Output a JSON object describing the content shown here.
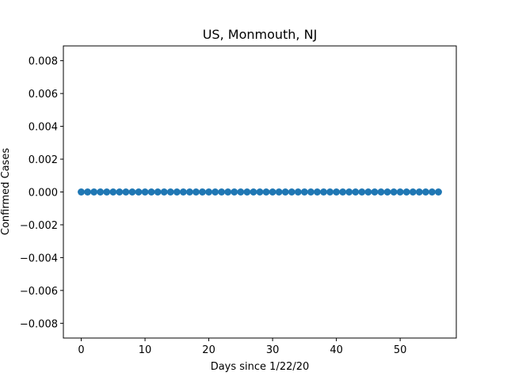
{
  "chart_data": {
    "type": "scatter",
    "title": "US, Monmouth, NJ",
    "xlabel": "Days since 1/22/20",
    "ylabel": "Confirmed Cases",
    "x": [
      0,
      1,
      2,
      3,
      4,
      5,
      6,
      7,
      8,
      9,
      10,
      11,
      12,
      13,
      14,
      15,
      16,
      17,
      18,
      19,
      20,
      21,
      22,
      23,
      24,
      25,
      26,
      27,
      28,
      29,
      30,
      31,
      32,
      33,
      34,
      35,
      36,
      37,
      38,
      39,
      40,
      41,
      42,
      43,
      44,
      45,
      46,
      47,
      48,
      49,
      50,
      51,
      52,
      53,
      54,
      55,
      56
    ],
    "y": [
      0,
      0,
      0,
      0,
      0,
      0,
      0,
      0,
      0,
      0,
      0,
      0,
      0,
      0,
      0,
      0,
      0,
      0,
      0,
      0,
      0,
      0,
      0,
      0,
      0,
      0,
      0,
      0,
      0,
      0,
      0,
      0,
      0,
      0,
      0,
      0,
      0,
      0,
      0,
      0,
      0,
      0,
      0,
      0,
      0,
      0,
      0,
      0,
      0,
      0,
      0,
      0,
      0,
      0,
      0,
      0,
      0
    ],
    "xlim": [
      -2.8,
      58.8
    ],
    "ylim": [
      -0.0089,
      0.0089
    ],
    "xticks": [
      0,
      10,
      20,
      30,
      40,
      50
    ],
    "xtick_labels": [
      "0",
      "10",
      "20",
      "30",
      "40",
      "50"
    ],
    "yticks": [
      0.008,
      0.006,
      0.004,
      0.002,
      0.0,
      -0.002,
      -0.004,
      -0.006,
      -0.008
    ],
    "ytick_labels": [
      "0.008",
      "0.006",
      "0.004",
      "0.002",
      "0.000",
      "−0.002",
      "−0.004",
      "−0.006",
      "−0.008"
    ],
    "marker_color": "#1f77b4",
    "grid": false,
    "legend": false
  }
}
